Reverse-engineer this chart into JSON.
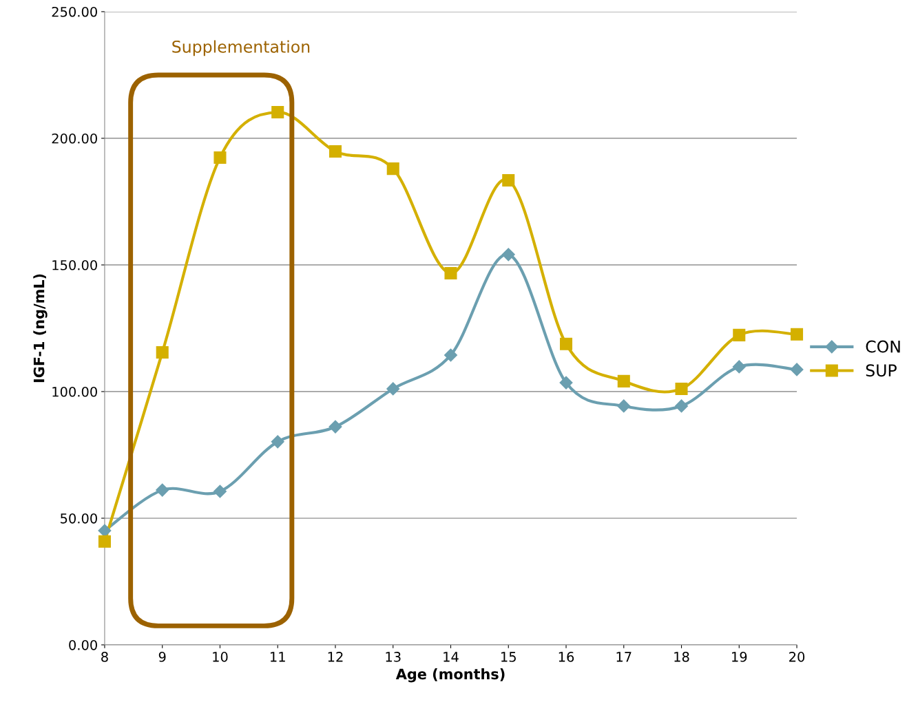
{
  "chart_data": {
    "type": "line",
    "xlabel": "Age (months)",
    "ylabel": "IGF-1 (ng/mL)",
    "x": [
      8,
      9,
      10,
      11,
      12,
      13,
      14,
      15,
      16,
      17,
      18,
      19,
      20
    ],
    "series": [
      {
        "name": "CON",
        "color": "#6b9fb0",
        "marker": "diamond",
        "values": [
          45.1,
          61.1,
          60.6,
          80.2,
          86.1,
          101.1,
          114.4,
          154.1,
          103.5,
          94.3,
          94.3,
          109.8,
          108.7
        ]
      },
      {
        "name": "SUP",
        "color": "#d4b000",
        "marker": "square",
        "values": [
          40.8,
          115.5,
          192.4,
          210.3,
          194.8,
          188.0,
          146.7,
          183.4,
          118.8,
          104.1,
          101.1,
          122.3,
          122.6
        ]
      }
    ],
    "xlim": [
      8,
      20
    ],
    "xticks": [
      8,
      9,
      10,
      11,
      12,
      13,
      14,
      15,
      16,
      17,
      18,
      19,
      20
    ],
    "ylim": [
      0,
      250
    ],
    "yticks": [
      {
        "value": 0,
        "label": "0.00"
      },
      {
        "value": 50,
        "label": "50.00"
      },
      {
        "value": 100,
        "label": "100.00"
      },
      {
        "value": 150,
        "label": "150.00"
      },
      {
        "value": 200,
        "label": "200.00"
      },
      {
        "value": 250,
        "label": "250.00"
      }
    ],
    "grid": "y",
    "legend": "right",
    "line_style": "solid",
    "annotations": [
      "Supplementation"
    ]
  }
}
